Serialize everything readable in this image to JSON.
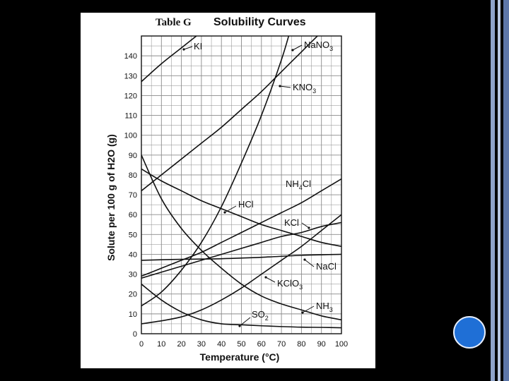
{
  "colors": {
    "background": "#000000",
    "chart_bg": "#ffffff",
    "curve": "#111111",
    "grid": "#8a8a8a",
    "nav_dot": "#1f6fd6"
  },
  "nav_dot_icon": "circle-icon",
  "chart_data": {
    "type": "line",
    "title_prefix": "Table G",
    "title": "Solubility Curves",
    "xlabel": "Temperature (°C)",
    "ylabel": "Solute per 100 g of H2O (g)",
    "xlim": [
      0,
      100
    ],
    "ylim": [
      0,
      150
    ],
    "xticks": [
      "0",
      "10",
      "20",
      "30",
      "40",
      "50",
      "60",
      "70",
      "80",
      "90",
      "100"
    ],
    "yticks": [
      "0",
      "10",
      "20",
      "30",
      "40",
      "50",
      "60",
      "70",
      "80",
      "90",
      "100",
      "110",
      "120",
      "130",
      "140"
    ],
    "grid": true,
    "series": [
      {
        "name": "KI",
        "label_main": "KI",
        "label_sub": "",
        "x": [
          0,
          10,
          20,
          30
        ],
        "y": [
          127,
          136,
          144,
          152
        ]
      },
      {
        "name": "NaNO3",
        "label_main": "NaNO",
        "label_sub": "3",
        "x": [
          0,
          10,
          20,
          30,
          40,
          50,
          60,
          70,
          80,
          90,
          100
        ],
        "y": [
          72,
          80,
          88,
          96,
          104,
          113,
          122,
          132,
          142,
          152,
          162
        ]
      },
      {
        "name": "KNO3",
        "label_main": "KNO",
        "label_sub": "3",
        "x": [
          0,
          10,
          20,
          30,
          40,
          50,
          60,
          70,
          75
        ],
        "y": [
          14,
          21,
          32,
          46,
          64,
          86,
          110,
          138,
          155
        ]
      },
      {
        "name": "NH4Cl",
        "label_main": "NH",
        "label_sub": "4",
        "label_tail": "Cl",
        "x": [
          0,
          10,
          20,
          30,
          40,
          50,
          60,
          70,
          80,
          90,
          100
        ],
        "y": [
          29,
          33,
          37,
          41,
          46,
          51,
          56,
          61,
          66,
          72,
          78
        ]
      },
      {
        "name": "HCl",
        "label_main": "HCl",
        "label_sub": "",
        "x": [
          0,
          10,
          20,
          30,
          40,
          50,
          60,
          70,
          80,
          90,
          100
        ],
        "y": [
          83,
          77,
          72,
          67,
          63,
          59,
          55,
          52,
          49,
          46,
          44
        ]
      },
      {
        "name": "KCl",
        "label_main": "KCl",
        "label_sub": "",
        "x": [
          0,
          10,
          20,
          30,
          40,
          50,
          60,
          70,
          80,
          90,
          100
        ],
        "y": [
          28,
          31,
          34,
          37,
          40,
          43,
          46,
          49,
          51,
          54,
          56
        ]
      },
      {
        "name": "NaCl",
        "label_main": "NaCl",
        "label_sub": "",
        "x": [
          0,
          20,
          40,
          60,
          80,
          100
        ],
        "y": [
          37,
          37.5,
          37.8,
          38.5,
          39.5,
          40
        ]
      },
      {
        "name": "KClO3",
        "label_main": "KClO",
        "label_sub": "3",
        "x": [
          0,
          10,
          20,
          30,
          40,
          50,
          60,
          70,
          80,
          90,
          100
        ],
        "y": [
          5,
          6.5,
          8.5,
          12,
          17,
          23,
          30,
          37,
          44,
          52,
          60
        ]
      },
      {
        "name": "NH3",
        "label_main": "NH",
        "label_sub": "3",
        "x": [
          0,
          10,
          20,
          30,
          40,
          50,
          60,
          70,
          80,
          90,
          100
        ],
        "y": [
          90,
          68,
          53,
          42,
          33,
          25,
          19,
          15,
          12,
          9,
          7
        ]
      },
      {
        "name": "SO2",
        "label_main": "SO",
        "label_sub": "2",
        "x": [
          0,
          10,
          20,
          30,
          40,
          50,
          60,
          70,
          80,
          90,
          100
        ],
        "y": [
          25,
          17,
          11,
          7,
          5,
          4.5,
          4,
          3.6,
          3.3,
          3.2,
          3
        ]
      }
    ]
  }
}
